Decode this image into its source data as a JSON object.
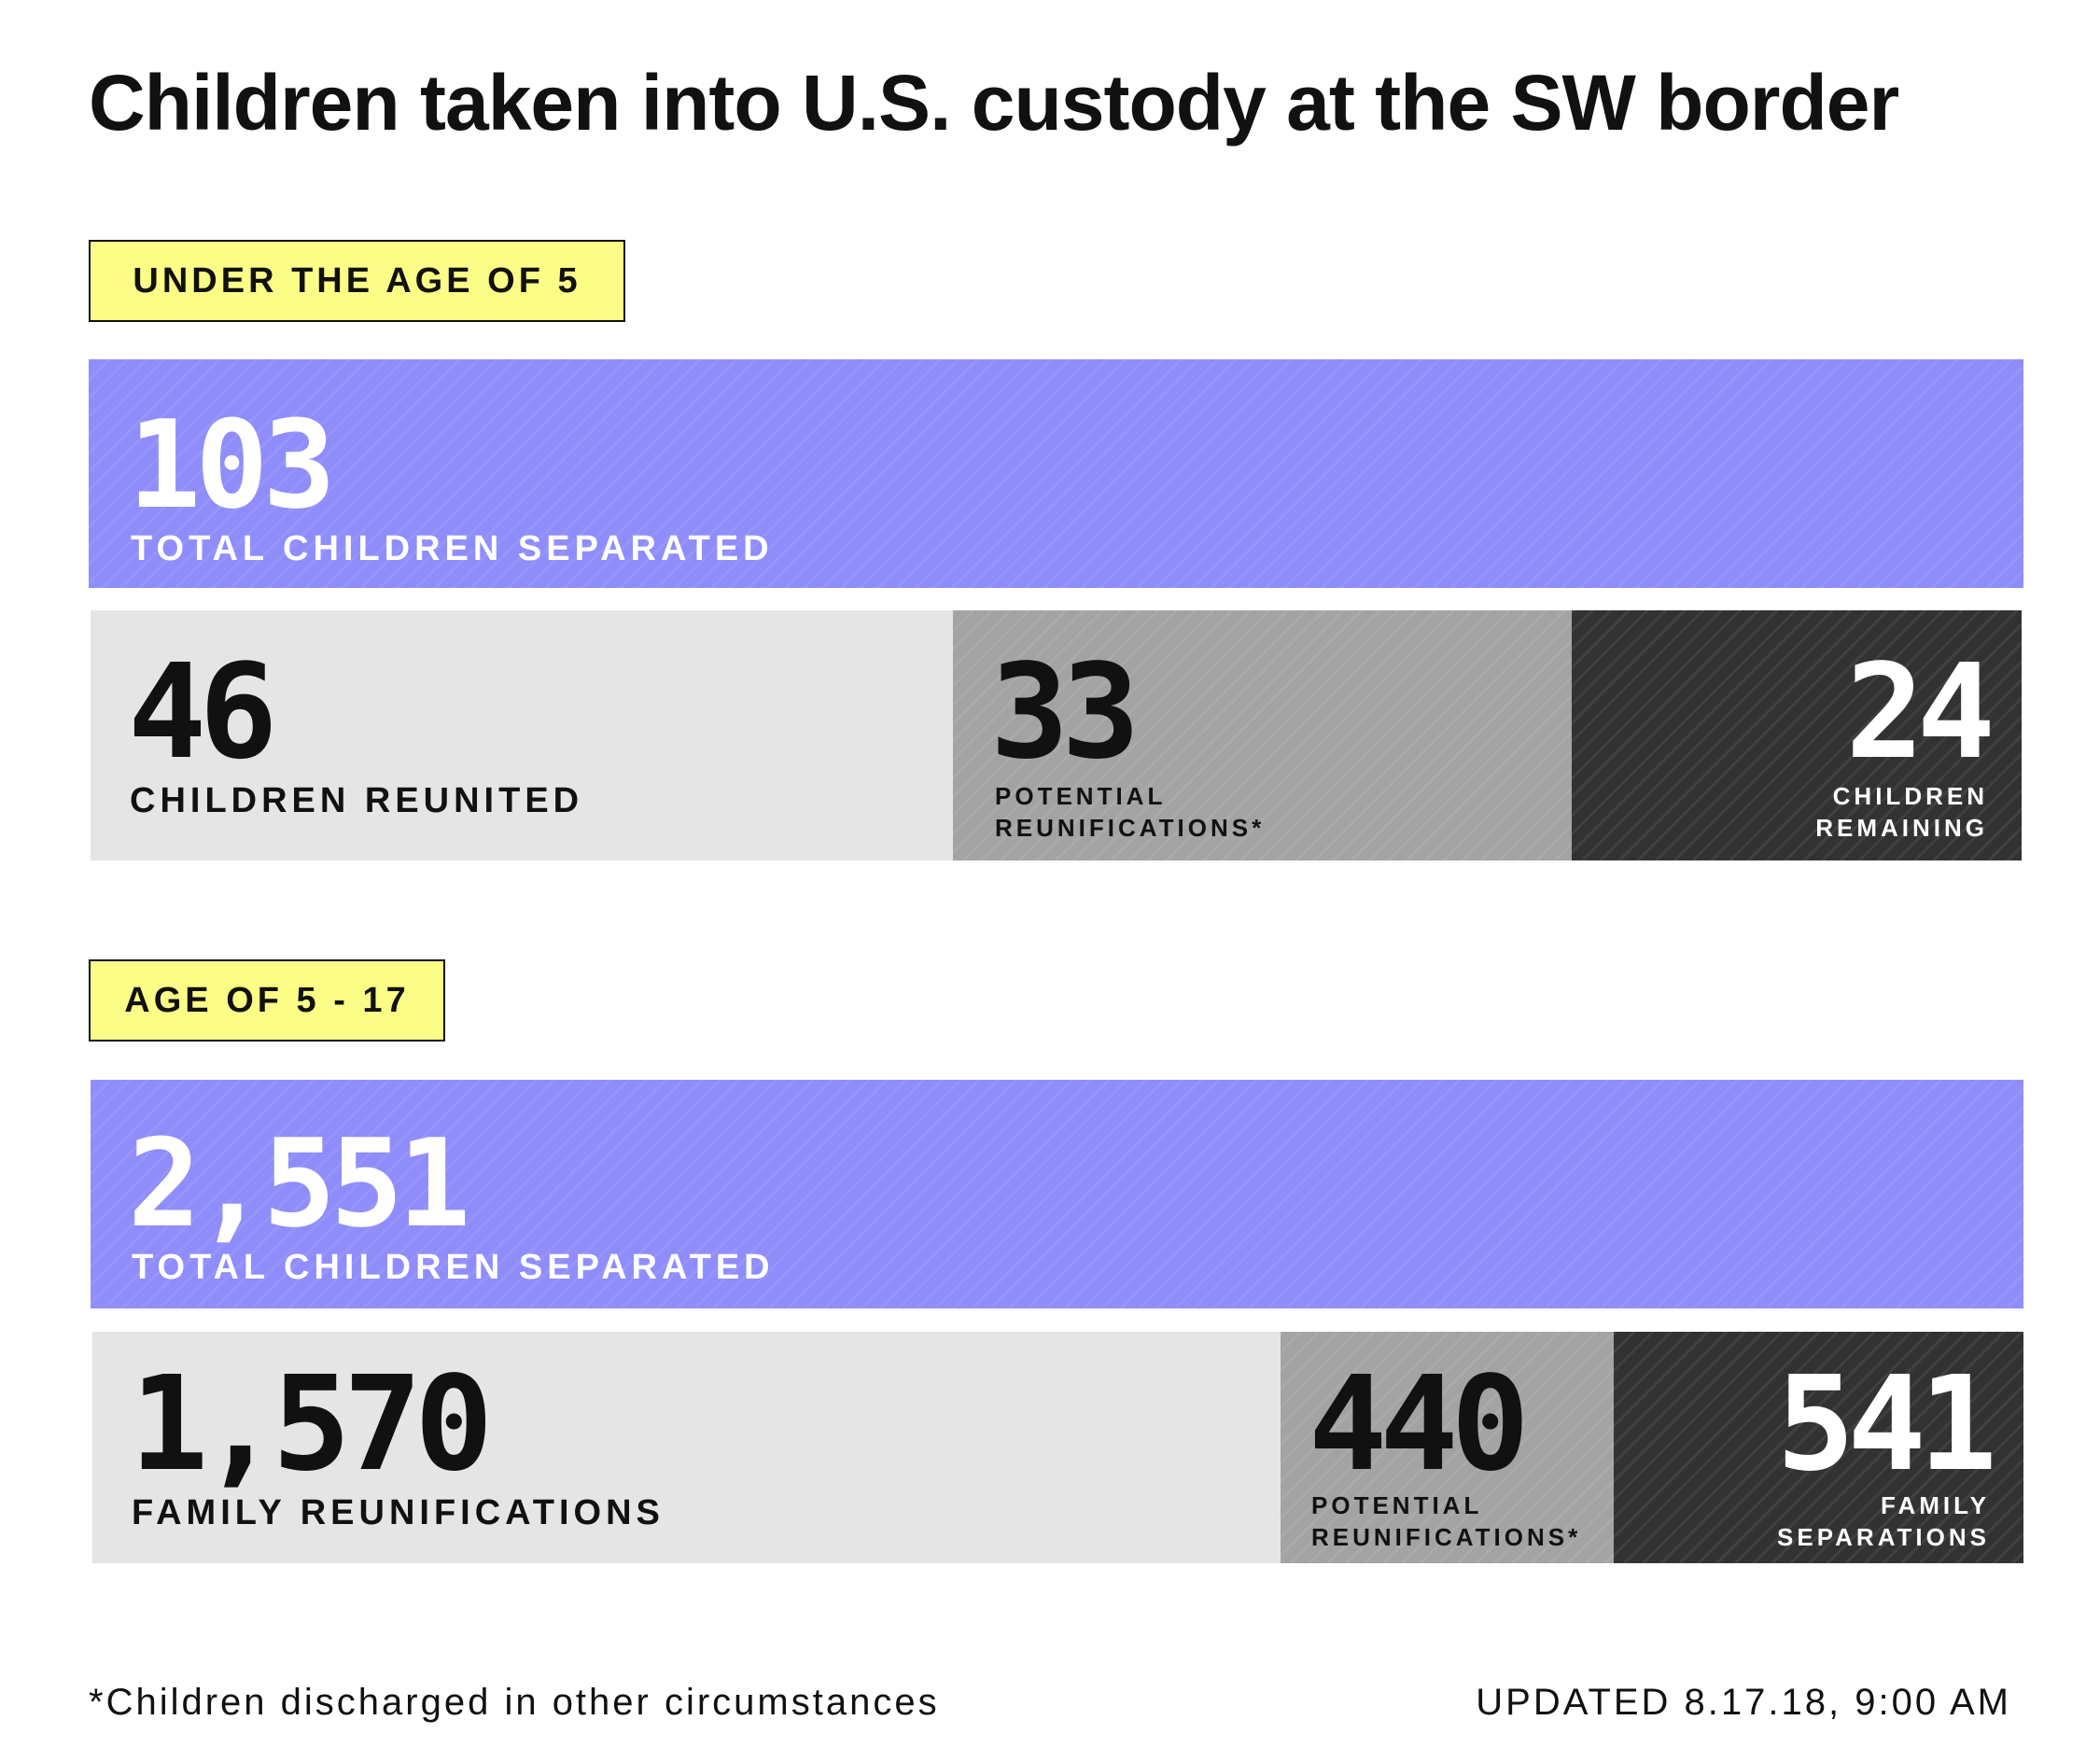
{
  "title": "Children taken into U.S. custody at the SW border",
  "colors": {
    "tag": "#fbfd86",
    "total_band": "#8f8dfb",
    "reunited": "#e5e5e5",
    "potential": "#a3a3a3",
    "remaining": "#323232"
  },
  "chart_data": [
    {
      "type": "bar",
      "section_label": "UNDER THE AGE OF 5",
      "total": {
        "value": 103,
        "display": "103",
        "label": "TOTAL CHILDREN SEPARATED"
      },
      "segments": [
        {
          "value": 46,
          "display": "46",
          "label_lines": [
            "CHILDREN REUNITED"
          ]
        },
        {
          "value": 33,
          "display": "33",
          "label_lines": [
            "POTENTIAL",
            "REUNIFICATIONS*"
          ]
        },
        {
          "value": 24,
          "display": "24",
          "label_lines": [
            "CHILDREN",
            "REMAINING"
          ]
        }
      ]
    },
    {
      "type": "bar",
      "section_label": "AGE OF 5 - 17",
      "total": {
        "value": 2551,
        "display": "2,551",
        "label": "TOTAL CHILDREN SEPARATED"
      },
      "segments": [
        {
          "value": 1570,
          "display": "1,570",
          "label_lines": [
            "FAMILY REUNIFICATIONS"
          ]
        },
        {
          "value": 440,
          "display": "440",
          "label_lines": [
            "POTENTIAL",
            "REUNIFICATIONS*"
          ]
        },
        {
          "value": 541,
          "display": "541",
          "label_lines": [
            "FAMILY",
            "SEPARATIONS"
          ]
        }
      ]
    }
  ],
  "footnote": "*Children discharged in other circumstances",
  "updated": "UPDATED 8.17.18, 9:00 AM"
}
